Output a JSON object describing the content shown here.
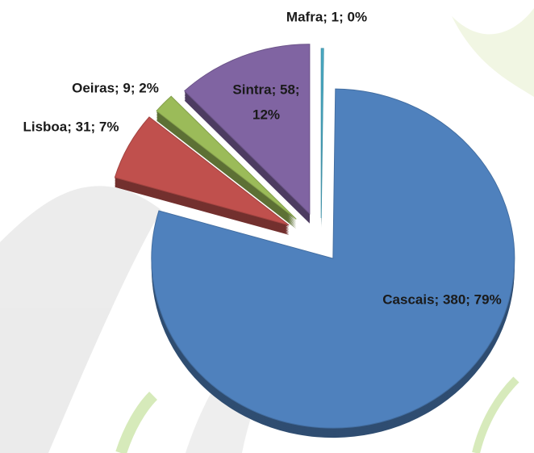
{
  "chart_data": {
    "type": "pie",
    "labels": [
      [
        "Mafra; 1; 0%"
      ],
      [
        "Cascais; 380; 79%"
      ],
      [
        "Lisboa; 31; 7%"
      ],
      [
        "Oeiras; 9; 2%"
      ],
      [
        "Sintra; 58;",
        "12%"
      ]
    ],
    "values": [
      1,
      380,
      31,
      9,
      58
    ],
    "colors": [
      "#4bacc6",
      "#4f81bd",
      "#c0504d",
      "#9bbb59",
      "#8064a2"
    ],
    "start_angle": 0,
    "direction": "clockwise"
  }
}
